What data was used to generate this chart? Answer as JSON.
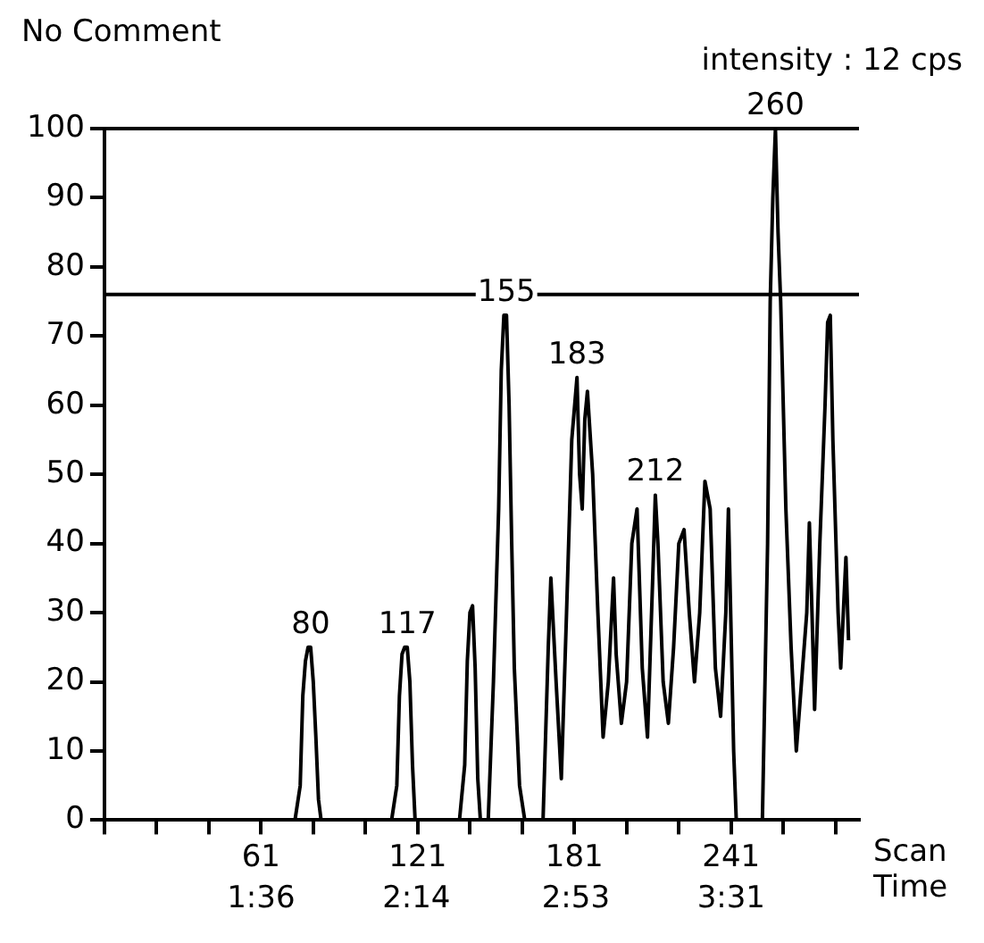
{
  "chart_data": {
    "type": "line",
    "title": "No Comment",
    "xlabel": "Scan Time",
    "annotations": [
      "intensity : 12 cps",
      {
        "text": "80",
        "x": 80,
        "y": 25
      },
      {
        "text": "117",
        "x": 117,
        "y": 25
      },
      {
        "text": "155",
        "x": 155,
        "y": 73
      },
      {
        "text": "183",
        "x": 182,
        "y": 64
      },
      {
        "text": "212",
        "x": 212,
        "y": 47
      },
      {
        "text": "260",
        "x": 258,
        "y": 100
      }
    ],
    "series": [
      {
        "color": "#000000",
        "x": [
          1,
          74,
          76,
          77,
          78,
          79,
          80,
          81,
          82,
          83,
          84,
          111,
          113,
          114,
          115,
          116,
          117,
          118,
          119,
          120,
          137,
          139,
          140,
          141,
          142,
          143,
          144,
          145,
          148,
          150,
          152,
          153,
          154,
          155,
          156,
          157,
          158,
          160,
          162,
          169,
          171,
          172,
          174,
          176,
          178,
          180,
          182,
          183,
          184,
          185,
          186,
          188,
          190,
          192,
          194,
          196,
          197,
          199,
          201,
          203,
          205,
          207,
          209,
          211,
          212,
          213,
          215,
          217,
          219,
          221,
          223,
          225,
          227,
          229,
          231,
          233,
          235,
          237,
          239,
          240,
          242,
          243,
          253,
          255,
          256,
          257,
          258,
          259,
          260,
          262,
          264,
          266,
          268,
          270,
          271,
          272,
          273,
          275,
          277,
          278,
          279,
          280,
          282,
          283,
          284,
          285,
          286
        ],
        "values": [
          0,
          0,
          5,
          18,
          23,
          25,
          25,
          20,
          12,
          3,
          0,
          0,
          5,
          18,
          24,
          25,
          25,
          20,
          8,
          0,
          0,
          8,
          23,
          30,
          31,
          22,
          6,
          0,
          0,
          20,
          45,
          65,
          73,
          73,
          60,
          40,
          22,
          5,
          0,
          0,
          25,
          35,
          20,
          6,
          30,
          55,
          64,
          50,
          45,
          58,
          62,
          50,
          30,
          12,
          20,
          35,
          24,
          14,
          20,
          40,
          45,
          22,
          12,
          35,
          47,
          40,
          20,
          14,
          25,
          40,
          42,
          30,
          20,
          30,
          49,
          45,
          22,
          15,
          30,
          45,
          10,
          0,
          0,
          40,
          75,
          90,
          100,
          85,
          75,
          45,
          25,
          10,
          20,
          30,
          43,
          30,
          16,
          40,
          60,
          72,
          73,
          55,
          30,
          22,
          30,
          38,
          26
        ]
      }
    ],
    "xlim": [
      1,
      290
    ],
    "ylim": [
      0,
      100
    ],
    "xticks": [
      {
        "value": 1,
        "label": null
      },
      {
        "value": 21,
        "label": null
      },
      {
        "value": 41,
        "label": null
      },
      61,
      {
        "value": 81,
        "label": null
      },
      {
        "value": 101,
        "label": null
      },
      121,
      {
        "value": 141,
        "label": null
      },
      {
        "value": 161,
        "label": null
      },
      181,
      {
        "value": 201,
        "label": null
      },
      {
        "value": 221,
        "label": null
      },
      241,
      {
        "value": 261,
        "label": null
      },
      {
        "value": 281,
        "label": null
      }
    ],
    "x2lim": [
      0.961,
      4.038
    ],
    "x2ticks": [
      {
        "value": 1.6,
        "label": "1:36"
      },
      {
        "value": 2.2333,
        "label": "2:14"
      },
      {
        "value": 2.8833,
        "label": "2:53"
      },
      {
        "value": 3.5167,
        "label": "3:31"
      }
    ],
    "yticks": [
      0,
      10,
      20,
      30,
      40,
      50,
      60,
      70,
      80,
      90,
      100
    ],
    "ref_lines": [
      {
        "axis": "y",
        "value": 100,
        "color": "#000000"
      },
      {
        "axis": "y",
        "value": 76,
        "color": "#000000"
      }
    ],
    "grid": false,
    "legend": false,
    "marker": "none",
    "line_style": "solid"
  }
}
